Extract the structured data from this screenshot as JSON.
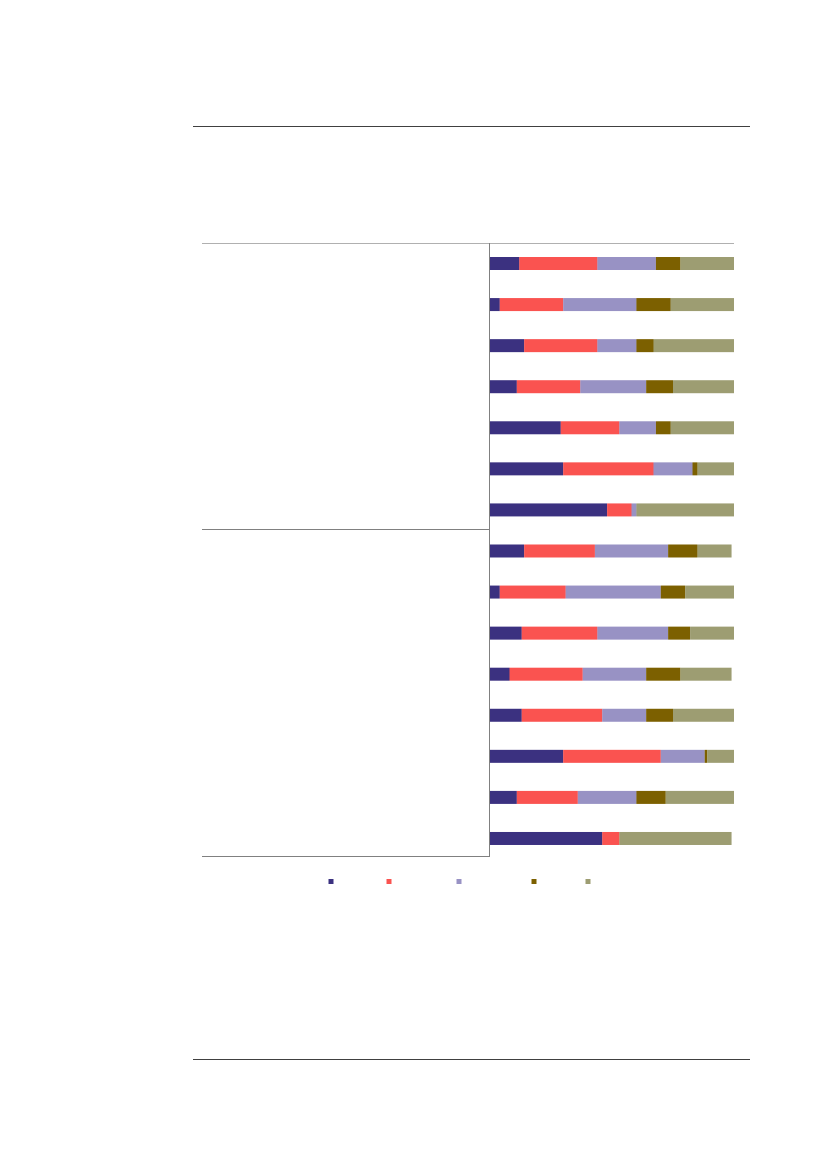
{
  "chart_data": {
    "type": "bar",
    "orientation": "horizontal",
    "stacked": "100%",
    "title": "",
    "xlabel": "",
    "ylabel": "",
    "xlim": [
      0,
      100
    ],
    "grid": false,
    "legend_position": "bottom",
    "groups": [
      {
        "name": "",
        "count": 7
      },
      {
        "name": "",
        "count": 8
      }
    ],
    "categories": [
      "",
      "",
      "",
      "",
      "",
      "",
      "",
      "",
      "",
      "",
      "",
      "",
      "",
      "",
      ""
    ],
    "colors": [
      "#3b3180",
      "#fa5350",
      "#9892c4",
      "#7c6000",
      "#9d9d72"
    ],
    "series": [
      {
        "values": [
          12,
          4,
          14,
          11,
          29,
          30,
          48,
          14,
          4,
          13,
          8,
          13,
          30,
          11,
          46
        ]
      },
      {
        "values": [
          32,
          26,
          30,
          26,
          24,
          37,
          10,
          29,
          27,
          31,
          30,
          33,
          40,
          25,
          7
        ]
      },
      {
        "values": [
          24,
          30,
          16,
          27,
          15,
          16,
          2,
          30,
          39,
          29,
          26,
          18,
          18,
          24,
          0
        ]
      },
      {
        "values": [
          10,
          14,
          7,
          11,
          6,
          2,
          0,
          12,
          10,
          9,
          14,
          11,
          1,
          12,
          0
        ]
      },
      {
        "values": [
          22,
          26,
          33,
          25,
          26,
          15,
          40,
          14,
          20,
          18,
          21,
          25,
          11,
          28,
          46
        ]
      }
    ]
  }
}
